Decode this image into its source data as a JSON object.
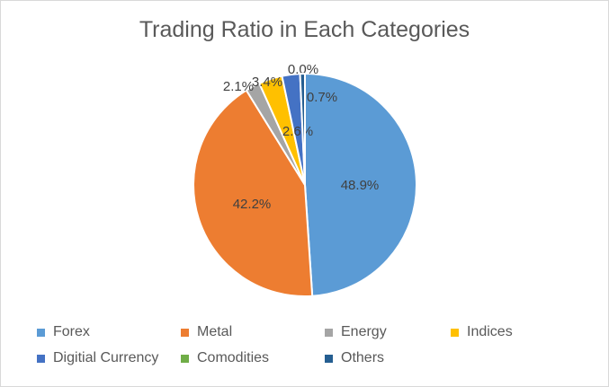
{
  "chart_data": {
    "type": "pie",
    "title": "Trading Ratio in Each Categories",
    "categories": [
      "Forex",
      "Metal",
      "Energy",
      "Indices",
      "Digitial Currency",
      "Comodities",
      "Others"
    ],
    "values": [
      48.9,
      42.2,
      2.1,
      3.4,
      2.6,
      0.0,
      0.7
    ],
    "labels": [
      "48.9%",
      "42.2%",
      "2.1%",
      "3.4%",
      "2.6%",
      "0.0%",
      "0.7%"
    ],
    "colors": [
      "#5b9bd5",
      "#ed7d31",
      "#a5a5a5",
      "#ffc000",
      "#4472c4",
      "#70ad47",
      "#255e91"
    ],
    "legend_position": "bottom"
  }
}
